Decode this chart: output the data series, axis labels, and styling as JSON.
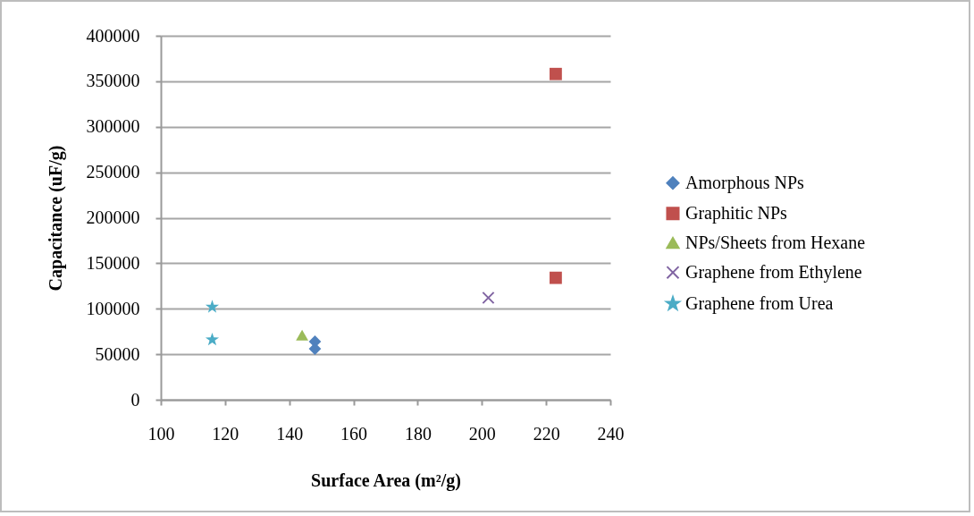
{
  "chart_data": {
    "type": "scatter",
    "xlabel": "Surface Area (m²/g)",
    "ylabel": "Capacitance (uF/g)",
    "xlim": [
      100,
      240
    ],
    "xticks": [
      100,
      120,
      140,
      160,
      180,
      200,
      220,
      240
    ],
    "ylim": [
      0,
      400000
    ],
    "yticks": [
      0,
      50000,
      100000,
      150000,
      200000,
      250000,
      300000,
      350000,
      400000
    ],
    "grid": "y",
    "legend": "right",
    "series": [
      {
        "name": "Amorphous NPs",
        "color": "#4f81bd",
        "marker": "diamond",
        "x": [
          148,
          148
        ],
        "values": [
          64000,
          56000
        ]
      },
      {
        "name": "Graphitic NPs",
        "color": "#c0504d",
        "marker": "square",
        "x": [
          223,
          223
        ],
        "values": [
          358000,
          134000
        ]
      },
      {
        "name": "NPs/Sheets from Hexane",
        "color": "#9bbb59",
        "marker": "triangle",
        "x": [
          144
        ],
        "values": [
          71000
        ]
      },
      {
        "name": "Graphene from Ethylene",
        "color": "#8064a2",
        "marker": "cross",
        "x": [
          202
        ],
        "values": [
          112000
        ]
      },
      {
        "name": "Graphene from Urea",
        "color": "#4bacc6",
        "marker": "star",
        "x": [
          116,
          116
        ],
        "values": [
          102000,
          66000
        ]
      }
    ]
  }
}
